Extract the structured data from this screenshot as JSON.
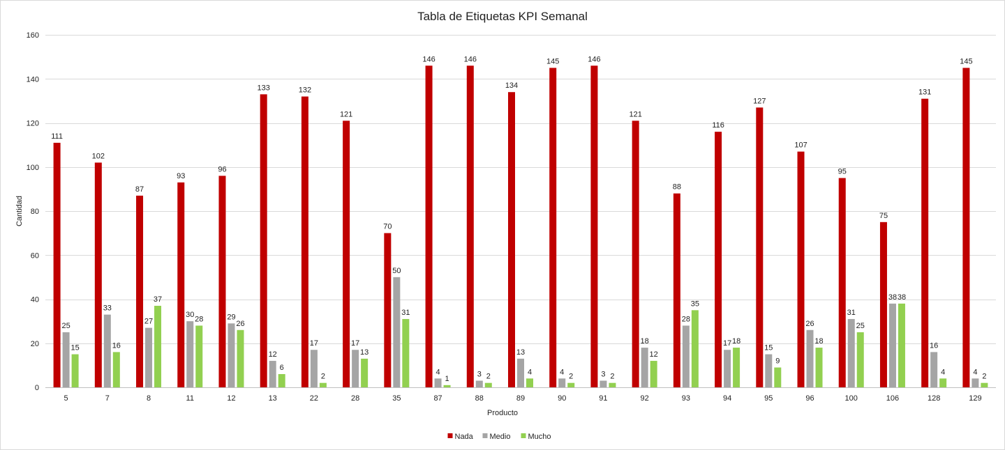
{
  "chart_data": {
    "type": "bar",
    "title": "Tabla de Etiquetas KPI Semanal",
    "xlabel": "Producto",
    "ylabel": "Cantidad",
    "ylim": [
      0,
      160
    ],
    "yticks": [
      0,
      20,
      40,
      60,
      80,
      100,
      120,
      140,
      160
    ],
    "grid": true,
    "legend_position": "bottom",
    "categories": [
      "5",
      "7",
      "8",
      "11",
      "12",
      "13",
      "22",
      "28",
      "35",
      "87",
      "88",
      "89",
      "90",
      "91",
      "92",
      "93",
      "94",
      "95",
      "96",
      "100",
      "106",
      "128",
      "129"
    ],
    "series": [
      {
        "name": "Nada",
        "color": "#c00000",
        "values": [
          111,
          102,
          87,
          93,
          96,
          133,
          132,
          121,
          70,
          146,
          146,
          134,
          145,
          146,
          121,
          88,
          116,
          127,
          107,
          95,
          75,
          131,
          145
        ]
      },
      {
        "name": "Medio",
        "color": "#a5a5a5",
        "values": [
          25,
          33,
          27,
          30,
          29,
          12,
          17,
          17,
          50,
          4,
          3,
          13,
          4,
          3,
          18,
          28,
          17,
          15,
          26,
          31,
          38,
          16,
          4
        ]
      },
      {
        "name": "Mucho",
        "color": "#92d050",
        "values": [
          15,
          16,
          37,
          28,
          26,
          6,
          2,
          13,
          31,
          1,
          2,
          4,
          2,
          2,
          12,
          35,
          18,
          9,
          18,
          25,
          38,
          4,
          2
        ]
      }
    ]
  }
}
